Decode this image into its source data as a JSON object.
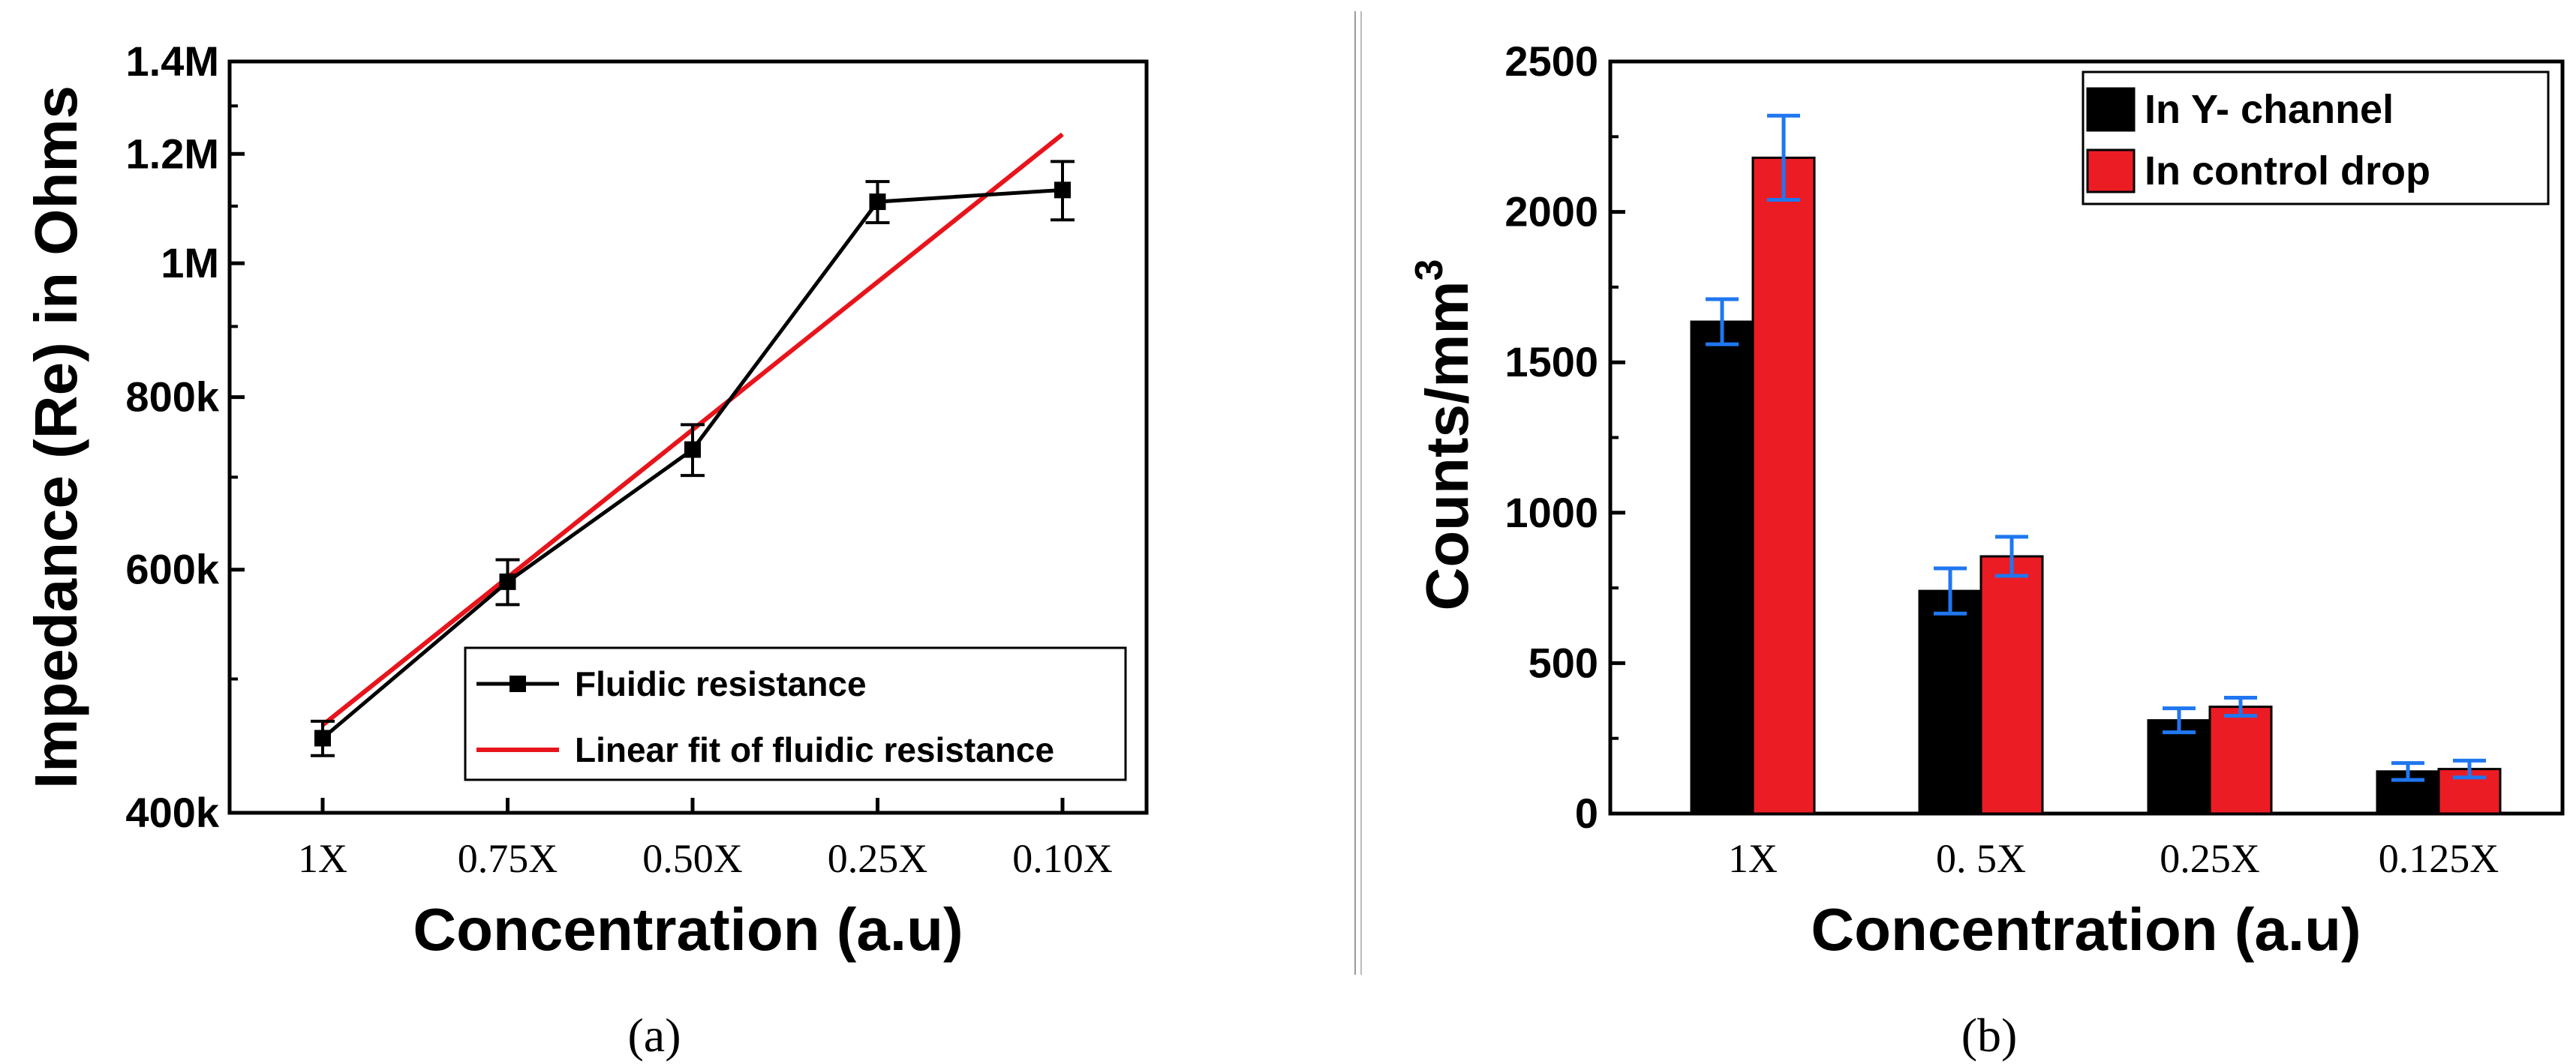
{
  "chart_data": [
    {
      "type": "line",
      "panel_label": "(a)",
      "xlabel": "Concentration (a.u)",
      "ylabel": "Impedance (Re) in Ohms",
      "categories": [
        "1X",
        "0.75X",
        "0.50X",
        "0.25X",
        "0.10X"
      ],
      "y_scale": "log",
      "ylim": [
        400000,
        1400000
      ],
      "y_ticks": [
        400000,
        600000,
        800000,
        1000000,
        1200000,
        1400000
      ],
      "y_tick_labels": [
        "400k",
        "600k",
        "800k",
        "1M",
        "1.2M",
        "1.4M"
      ],
      "series": [
        {
          "name": "Fluidic resistance",
          "values": [
            453000,
            588000,
            733000,
            1108000,
            1130000
          ],
          "errors": [
            13000,
            22000,
            31000,
            38000,
            55000
          ],
          "color": "#000000",
          "marker": "square"
        },
        {
          "name": "Linear fit of fluidic resistance",
          "start": 463000,
          "end": 1240000,
          "color": "#e8141b"
        }
      ],
      "legend_position": "lower-right"
    },
    {
      "type": "bar",
      "panel_label": "(b)",
      "xlabel": "Concentration (a.u)",
      "ylabel": "Counts/mm",
      "ylabel_superscript": "3",
      "categories": [
        "1X",
        "0. 5X",
        "0.25X",
        "0.125X"
      ],
      "ylim": [
        0,
        2500
      ],
      "y_ticks": [
        0,
        500,
        1000,
        1500,
        2000,
        2500
      ],
      "series": [
        {
          "name": "In Y- channel",
          "values": [
            1635,
            740,
            310,
            140
          ],
          "errors": [
            75,
            75,
            40,
            28
          ],
          "color": "#000000"
        },
        {
          "name": "In control drop",
          "values": [
            2180,
            855,
            355,
            148
          ],
          "errors": [
            140,
            65,
            30,
            28
          ],
          "color": "#ec1c24"
        }
      ],
      "error_bar_color": "#1f77f0",
      "legend_position": "top-right"
    }
  ]
}
